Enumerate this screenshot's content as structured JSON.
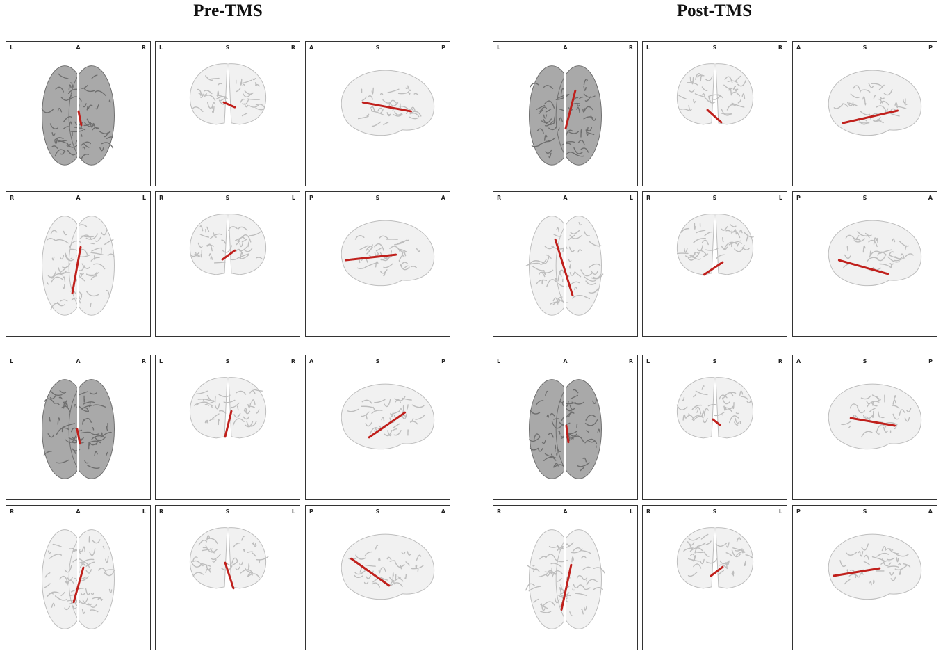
{
  "columns": [
    {
      "title": "Pre-TMS"
    },
    {
      "title": "Post-TMS"
    }
  ],
  "colors": {
    "tract": "#c0201c",
    "brain_dark": "#8c8c8c",
    "brain_light": "#d8d8d8",
    "frame": "#333333"
  },
  "view_rows": [
    {
      "views": [
        {
          "kind": "axial-top",
          "labels": [
            "L",
            "A",
            "R"
          ]
        },
        {
          "kind": "coronal",
          "labels": [
            "L",
            "S",
            "R"
          ]
        },
        {
          "kind": "sagittal-right",
          "labels": [
            "A",
            "S",
            "P"
          ]
        }
      ]
    },
    {
      "views": [
        {
          "kind": "axial-bottom",
          "labels": [
            "R",
            "A",
            "L"
          ]
        },
        {
          "kind": "coronal",
          "labels": [
            "R",
            "S",
            "L"
          ]
        },
        {
          "kind": "sagittal-left",
          "labels": [
            "P",
            "S",
            "A"
          ]
        }
      ]
    }
  ],
  "groups": [
    {
      "column": "Pre-TMS",
      "block": 1
    },
    {
      "column": "Post-TMS",
      "block": 1
    },
    {
      "column": "Pre-TMS",
      "block": 2
    },
    {
      "column": "Post-TMS",
      "block": 2
    }
  ]
}
